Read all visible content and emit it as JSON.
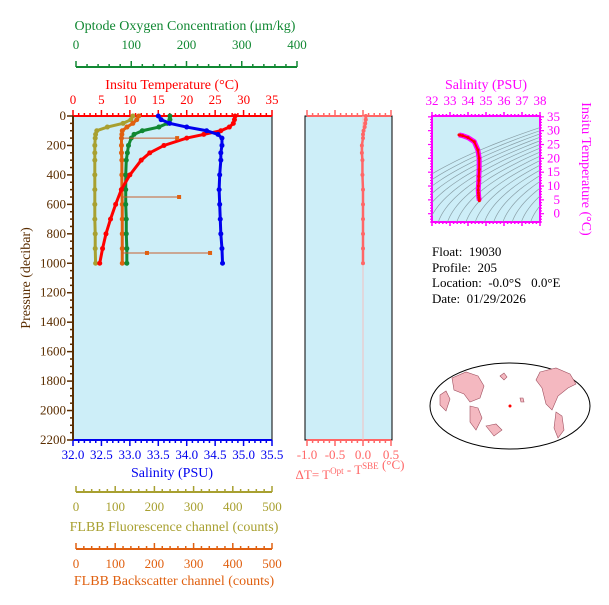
{
  "colors": {
    "temperature": "#ff0000",
    "salinity": "#0000ee",
    "oxygen": "#118833",
    "fluorescence": "#a8a030",
    "backscatter": "#e06010",
    "delta_t": "#ff6666",
    "pressure": "#5a2d00",
    "ts": "#ff00ff",
    "panel_bg": "#cdeef8"
  },
  "info": {
    "float": "Float:  19030",
    "profile": "Profile:  205",
    "location": "Location:  -0.0°S   0.0°E",
    "date": "Date:  01/29/2026"
  },
  "chart_data": [
    {
      "type": "line",
      "name": "profile",
      "ylabel": "Pressure (decibar)",
      "ylim": [
        2200,
        0
      ],
      "yticks": [
        "0",
        "200",
        "400",
        "600",
        "800",
        "1000",
        "1200",
        "1400",
        "1600",
        "1800",
        "2000",
        "2200"
      ],
      "pressure": [
        0,
        25,
        50,
        75,
        100,
        125,
        150,
        200,
        250,
        300,
        400,
        500,
        600,
        700,
        800,
        900,
        1000
      ],
      "axes": {
        "temperature": {
          "label": "Insitu Temperature (°C)",
          "lim": [
            0,
            35
          ],
          "ticks": [
            "0",
            "5",
            "10",
            "15",
            "20",
            "25",
            "30",
            "35"
          ]
        },
        "oxygen": {
          "label": "Optode Oxygen Concentration (μm/kg)",
          "lim": [
            0,
            400
          ],
          "ticks": [
            "0",
            "100",
            "200",
            "300",
            "400"
          ]
        },
        "salinity": {
          "label": "Salinity (PSU)",
          "lim": [
            32,
            35.5
          ],
          "ticks": [
            "32.0",
            "32.5",
            "33.0",
            "33.5",
            "34.0",
            "34.5",
            "35.0",
            "35.5"
          ]
        },
        "fluorescence": {
          "label": "FLBB Fluorescence channel (counts)",
          "lim": [
            0,
            500
          ],
          "ticks": [
            "0",
            "100",
            "200",
            "300",
            "400",
            "500"
          ]
        },
        "backscatter": {
          "label": "FLBB Backscatter channel (counts)",
          "lim": [
            0,
            500
          ],
          "ticks": [
            "0",
            "100",
            "200",
            "300",
            "400",
            "500"
          ]
        }
      },
      "series": [
        {
          "key": "temperature",
          "values": [
            28.5,
            28.4,
            28.2,
            27.5,
            26,
            23,
            20,
            16,
            13.5,
            12,
            10,
            8.5,
            7.5,
            6.6,
            5.8,
            5.2,
            4.7
          ]
        },
        {
          "key": "salinity",
          "values": [
            33.5,
            33.55,
            33.7,
            34.0,
            34.35,
            34.55,
            34.62,
            34.62,
            34.6,
            34.6,
            34.58,
            34.57,
            34.58,
            34.59,
            34.6,
            34.62,
            34.63
          ]
        },
        {
          "key": "oxygen",
          "values": [
            170,
            170,
            165,
            150,
            120,
            105,
            100,
            95,
            93,
            91,
            90,
            90,
            90,
            91,
            91,
            92,
            92
          ]
        },
        {
          "key": "fluorescence",
          "values": [
            145,
            140,
            120,
            80,
            53,
            50,
            49,
            48,
            48,
            48,
            48,
            48,
            48,
            48,
            49,
            49,
            50
          ]
        },
        {
          "key": "backscatter",
          "values": [
            160,
            155,
            145,
            130,
            118,
            117,
            116,
            116,
            116,
            117,
            117,
            117,
            118,
            118,
            118,
            118,
            118
          ]
        }
      ],
      "backscatter_spikes": [
        [
          150,
          258
        ],
        [
          550,
          263
        ],
        [
          930,
          342
        ],
        [
          930,
          181
        ]
      ]
    },
    {
      "type": "line",
      "name": "delta_t",
      "xlabel": "ΔT= T",
      "xlabel_sup1": "Opt",
      "xlabel_mid": " - T",
      "xlabel_sup2": "SBE",
      "xlabel_end": " (°C)",
      "xlim": [
        -1.0,
        0.5
      ],
      "xticks": [
        "-1.0",
        "-0.5",
        "0.0",
        "0.5"
      ],
      "values": [
        0.05,
        0.05,
        0.04,
        0.03,
        0.01,
        0.0,
        0.0,
        -0.02,
        -0.02,
        -0.01,
        -0.01,
        0.0,
        0.0,
        0.0,
        0.0,
        0.0,
        0.0
      ]
    },
    {
      "type": "scatter",
      "name": "t_s_diagram",
      "xlabel": "Salinity (PSU)",
      "ylabel": "Insitu Temperature (°C)",
      "xlim": [
        32,
        38
      ],
      "ylim": [
        -3,
        35.3
      ],
      "xticks": [
        "32",
        "33",
        "34",
        "35",
        "36",
        "37",
        "38"
      ],
      "yticks": [
        "0",
        "5",
        "10",
        "15",
        "20",
        "25",
        "30",
        "35"
      ],
      "note": "temperature vs salinity of the profile, with density contours"
    }
  ]
}
